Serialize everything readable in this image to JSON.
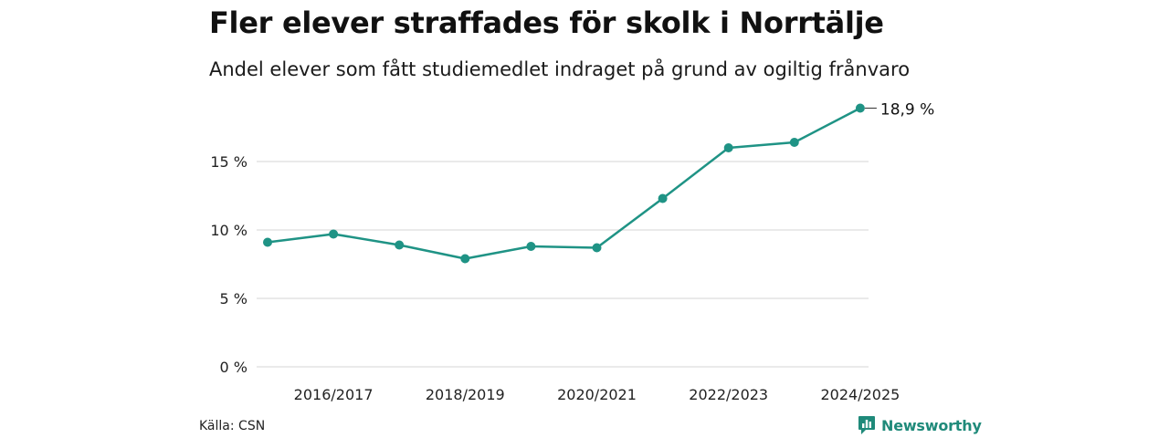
{
  "header": {
    "title": "Fler elever straffades för skolk i Norrtälje",
    "subtitle": "Andel elever som fått studiemedlet indraget på grund av ogiltig frånvaro"
  },
  "footer": {
    "source": "Källa: CSN",
    "brand": "Newsworthy"
  },
  "colors": {
    "line": "#1f9385",
    "grid": "#dddddd",
    "brand": "#1f8a7a"
  },
  "icons": {
    "brand_logo": "newsworthy-bar-chart-icon"
  },
  "chart_data": {
    "type": "line",
    "title": "Fler elever straffades för skolk i Norrtälje",
    "subtitle": "Andel elever som fått studiemedlet indraget på grund av ogiltig frånvaro",
    "x": [
      "2015/2016",
      "2016/2017",
      "2017/2018",
      "2018/2019",
      "2019/2020",
      "2020/2021",
      "2021/2022",
      "2022/2023",
      "2023/2024",
      "2024/2025"
    ],
    "x_tick_labels": [
      "2016/2017",
      "2018/2019",
      "2020/2021",
      "2022/2023",
      "2024/2025"
    ],
    "series": [
      {
        "values": [
          9.1,
          9.7,
          8.9,
          7.9,
          8.8,
          8.7,
          12.3,
          16.0,
          16.4,
          18.9
        ]
      }
    ],
    "ylim": [
      0,
      20
    ],
    "y_ticks": [
      0,
      5,
      10,
      15
    ],
    "y_tick_labels": [
      "0 %",
      "5 %",
      "10 %",
      "15 %"
    ],
    "end_label": "18,9 %",
    "grid": true
  }
}
